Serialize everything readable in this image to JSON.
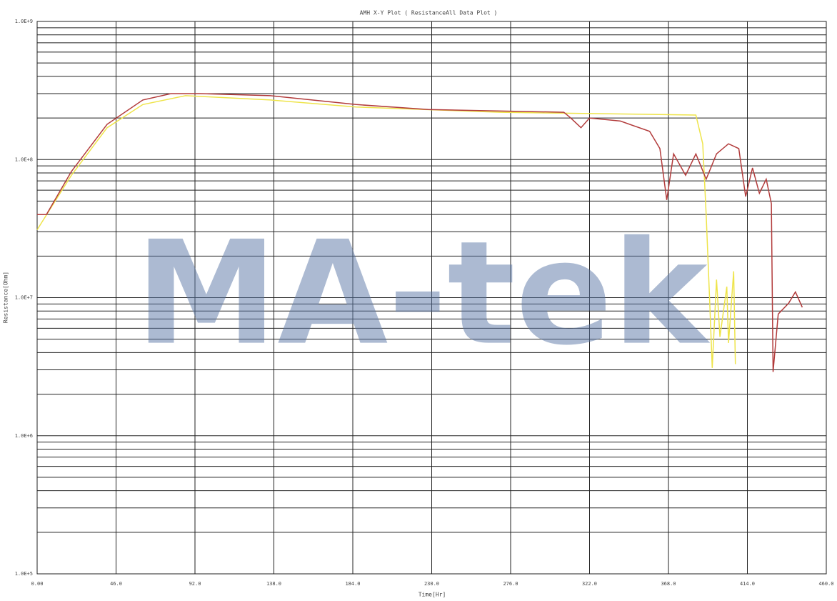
{
  "chart_data": {
    "type": "line",
    "title": "AMH X-Y Plot ( ResistanceAll Data Plot )",
    "x_label": "Time[Hr]",
    "y_label": "Resistance[Ohm]",
    "watermark": "MA-tek",
    "log_y": true,
    "grid": true,
    "minor_grid": true,
    "xlim": [
      0,
      460
    ],
    "ylim": [
      100000,
      1000000000
    ],
    "xticks": [
      {
        "value": 0,
        "label": "0.00"
      },
      {
        "value": 46,
        "label": "46.0"
      },
      {
        "value": 92,
        "label": "92.0"
      },
      {
        "value": 138,
        "label": "138.0"
      },
      {
        "value": 184,
        "label": "184.0"
      },
      {
        "value": 230,
        "label": "230.0"
      },
      {
        "value": 276,
        "label": "276.0"
      },
      {
        "value": 322,
        "label": "322.0"
      },
      {
        "value": 368,
        "label": "368.0"
      },
      {
        "value": 414,
        "label": "414.0"
      },
      {
        "value": 460,
        "label": "460.0"
      }
    ],
    "yticks": [
      {
        "value": 100000,
        "label": "1.0E+5"
      },
      {
        "value": 1000000,
        "label": "1.0E+6"
      },
      {
        "value": 10000000,
        "label": "1.0E+7"
      },
      {
        "value": 100000000,
        "label": "1.0E+8"
      },
      {
        "value": 1000000000,
        "label": "1.0E+9"
      }
    ],
    "series": [
      {
        "color": "#b23b3b",
        "x": [
          0,
          5.4,
          20,
          40.8,
          61.6,
          78,
          95,
          136,
          186,
          228,
          307,
          311,
          317,
          322,
          340,
          357,
          363,
          367,
          371,
          378,
          384,
          390,
          396,
          403,
          409,
          413,
          417,
          421,
          425,
          428,
          429,
          432,
          438,
          442,
          446
        ],
        "values": [
          40000000,
          40000000,
          82000000,
          180000000,
          270000000,
          300000000,
          300000000,
          290000000,
          250000000,
          230000000,
          220000000,
          200000000,
          170000000,
          200000000,
          190000000,
          160000000,
          120000000,
          51000000,
          110000000,
          77000000,
          110000000,
          72000000,
          110000000,
          130000000,
          120000000,
          54000000,
          87000000,
          57000000,
          72000000,
          48000000,
          2900000,
          7600000,
          9100000,
          11000000,
          8500000
        ]
      },
      {
        "color": "#eee44a",
        "x": [
          0,
          20,
          40.8,
          61.6,
          86.5,
          136,
          186,
          270,
          384,
          388,
          390,
          392,
          393.5,
          396,
          398,
          402,
          403,
          406,
          407
        ],
        "values": [
          31000000,
          77000000,
          170000000,
          250000000,
          290000000,
          270000000,
          240000000,
          220000000,
          210000000,
          130000000,
          40000000,
          9500000,
          3100000,
          13500000,
          5200000,
          12000000,
          4700000,
          15500000,
          3300000
        ]
      }
    ]
  }
}
